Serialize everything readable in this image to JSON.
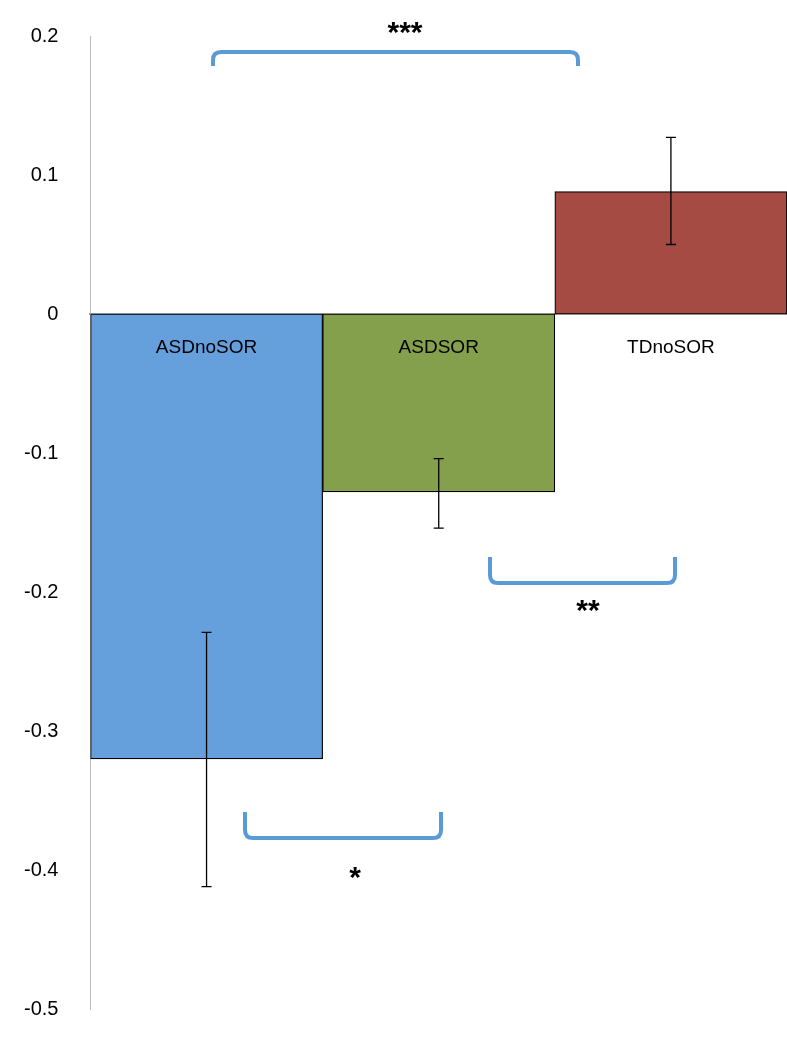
{
  "chart_data": {
    "type": "bar",
    "categories": [
      "ASDnoSOR",
      "ASDSOR",
      "TDnoSOR"
    ],
    "values": [
      -0.32,
      -0.128,
      0.088
    ],
    "colors": [
      "#659fdc",
      "#84a04c",
      "#a54b43"
    ],
    "errors": [
      [
        -0.412,
        -0.229
      ],
      [
        -0.154,
        -0.104
      ],
      [
        0.05,
        0.127
      ]
    ],
    "ylim": [
      -0.5,
      0.2
    ],
    "yticks": [
      -0.5,
      -0.4,
      -0.3,
      -0.2,
      -0.1,
      0,
      0.1,
      0.2
    ],
    "grid": false,
    "legend": false,
    "annotations": [
      "***",
      "**",
      "*"
    ]
  }
}
